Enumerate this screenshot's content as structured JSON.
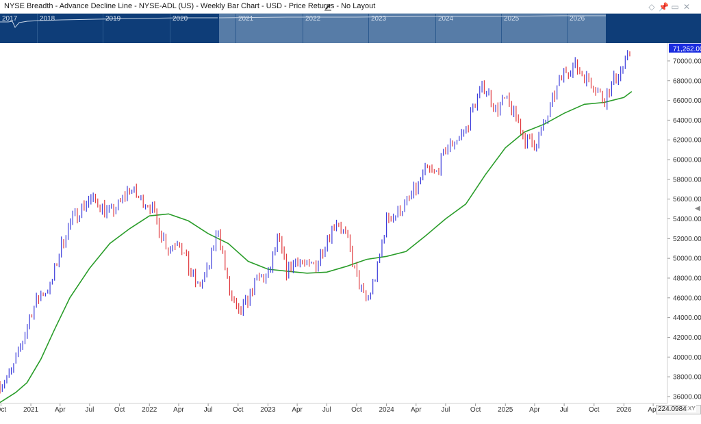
{
  "window": {
    "title": "NYSE Breadth - Advance Decline Line - NYSE-ADL (US) - Weekly Bar Chart - USD - Price Returns - No Layout",
    "icons": [
      "edit-icon",
      "diamond-icon",
      "pin-icon",
      "close-icon"
    ]
  },
  "overview": {
    "years": [
      "2017",
      "2018",
      "2019",
      "2020",
      "2021",
      "2022",
      "2023",
      "2024",
      "2025",
      "2026"
    ]
  },
  "price_flag": "71,262.00",
  "bottom_readout": "224.09843",
  "xy_label": "XY",
  "colors": {
    "up_bar": "#3d3ddb",
    "down_bar": "#e0393e",
    "moving_average": "#2a9d2a",
    "overview_bg": "#0e3d78",
    "overview_window": "#577ca7",
    "price_flag": "#1b2de0"
  },
  "chart_data": {
    "type": "bar",
    "bar_style": "ohlc-weekly",
    "y_ticks": [
      "36000.00",
      "38000.00",
      "40000.00",
      "42000.00",
      "44000.00",
      "46000.00",
      "48000.00",
      "50000.00",
      "52000.00",
      "54000.00",
      "56000.00",
      "58000.00",
      "60000.00",
      "62000.00",
      "64000.00",
      "66000.00",
      "68000.00",
      "70000.00"
    ],
    "ylim": [
      35300,
      71800
    ],
    "x_ticks": [
      "Oct",
      "2021",
      "Apr",
      "Jul",
      "Oct",
      "2022",
      "Apr",
      "Jul",
      "Oct",
      "2023",
      "Apr",
      "Jul",
      "Oct",
      "2024",
      "Apr",
      "Jul",
      "Oct",
      "2025",
      "Apr",
      "Jul",
      "Oct",
      "2026",
      "Apr"
    ],
    "x_start": "2020-09-28",
    "x_end": "2026-05-15",
    "last_value": 71262,
    "series": [
      {
        "name": "",
        "kind": "price",
        "points": [
          [
            "2020-09-28",
            37200
          ],
          [
            "2020-11-01",
            38400
          ],
          [
            "2020-12-01",
            41000
          ],
          [
            "2021-01-01",
            44500
          ],
          [
            "2021-02-01",
            46400
          ],
          [
            "2021-03-01",
            47000
          ],
          [
            "2021-04-01",
            51000
          ],
          [
            "2021-05-01",
            53500
          ],
          [
            "2021-06-01",
            55000
          ],
          [
            "2021-07-01",
            56000
          ],
          [
            "2021-08-01",
            55500
          ],
          [
            "2021-09-01",
            54500
          ],
          [
            "2021-10-01",
            55500
          ],
          [
            "2021-11-01",
            57200
          ],
          [
            "2021-12-01",
            56000
          ],
          [
            "2022-01-01",
            55500
          ],
          [
            "2022-02-01",
            53000
          ],
          [
            "2022-03-01",
            51000
          ],
          [
            "2022-04-01",
            52000
          ],
          [
            "2022-05-01",
            49000
          ],
          [
            "2022-06-01",
            47000
          ],
          [
            "2022-07-01",
            49000
          ],
          [
            "2022-08-01",
            53000
          ],
          [
            "2022-09-01",
            47000
          ],
          [
            "2022-10-01",
            44000
          ],
          [
            "2022-11-01",
            46000
          ],
          [
            "2022-12-01",
            48000
          ],
          [
            "2023-01-01",
            48000
          ],
          [
            "2023-02-01",
            52000
          ],
          [
            "2023-03-01",
            48500
          ],
          [
            "2023-04-01",
            50000
          ],
          [
            "2023-05-01",
            49000
          ],
          [
            "2023-06-01",
            49500
          ],
          [
            "2023-07-01",
            52000
          ],
          [
            "2023-08-01",
            54000
          ],
          [
            "2023-09-01",
            52000
          ],
          [
            "2023-10-01",
            48000
          ],
          [
            "2023-11-01",
            45500
          ],
          [
            "2023-12-01",
            48500
          ],
          [
            "2024-01-01",
            54000
          ],
          [
            "2024-02-01",
            54500
          ],
          [
            "2024-03-01",
            55500
          ],
          [
            "2024-04-01",
            57000
          ],
          [
            "2024-05-01",
            59000
          ],
          [
            "2024-06-01",
            58500
          ],
          [
            "2024-07-01",
            61000
          ],
          [
            "2024-08-01",
            62000
          ],
          [
            "2024-09-01",
            63000
          ],
          [
            "2024-10-01",
            66000
          ],
          [
            "2024-11-01",
            67500
          ],
          [
            "2024-12-01",
            65000
          ],
          [
            "2025-01-01",
            66000
          ],
          [
            "2025-02-01",
            64500
          ],
          [
            "2025-03-01",
            62000
          ],
          [
            "2025-04-01",
            61500
          ],
          [
            "2025-05-01",
            63500
          ],
          [
            "2025-06-01",
            66500
          ],
          [
            "2025-07-01",
            69000
          ],
          [
            "2025-08-01",
            69500
          ],
          [
            "2025-09-01",
            68500
          ],
          [
            "2025-10-01",
            67500
          ],
          [
            "2025-11-01",
            66000
          ],
          [
            "2025-12-01",
            68000
          ],
          [
            "2026-01-01",
            69500
          ],
          [
            "2026-01-25",
            71262
          ]
        ]
      },
      {
        "name": "",
        "kind": "moving_average",
        "points": [
          [
            "2020-09-28",
            35400
          ],
          [
            "2020-11-15",
            36400
          ],
          [
            "2020-12-20",
            37400
          ],
          [
            "2021-02-01",
            39800
          ],
          [
            "2021-03-15",
            42800
          ],
          [
            "2021-05-01",
            46000
          ],
          [
            "2021-07-01",
            49000
          ],
          [
            "2021-09-01",
            51500
          ],
          [
            "2021-11-01",
            53000
          ],
          [
            "2022-01-01",
            54300
          ],
          [
            "2022-03-01",
            54500
          ],
          [
            "2022-05-01",
            53800
          ],
          [
            "2022-07-01",
            52500
          ],
          [
            "2022-09-01",
            51500
          ],
          [
            "2022-11-01",
            49700
          ],
          [
            "2023-01-01",
            48900
          ],
          [
            "2023-03-01",
            48700
          ],
          [
            "2023-05-01",
            48500
          ],
          [
            "2023-07-01",
            48600
          ],
          [
            "2023-09-01",
            49200
          ],
          [
            "2023-11-01",
            49900
          ],
          [
            "2024-01-01",
            50200
          ],
          [
            "2024-03-01",
            50700
          ],
          [
            "2024-05-01",
            52300
          ],
          [
            "2024-07-01",
            54000
          ],
          [
            "2024-09-01",
            55500
          ],
          [
            "2024-11-01",
            58500
          ],
          [
            "2025-01-01",
            61200
          ],
          [
            "2025-03-01",
            62800
          ],
          [
            "2025-05-01",
            63600
          ],
          [
            "2025-07-01",
            64700
          ],
          [
            "2025-09-01",
            65600
          ],
          [
            "2025-11-01",
            65800
          ],
          [
            "2026-01-01",
            66300
          ],
          [
            "2026-01-25",
            66900
          ]
        ]
      }
    ]
  }
}
